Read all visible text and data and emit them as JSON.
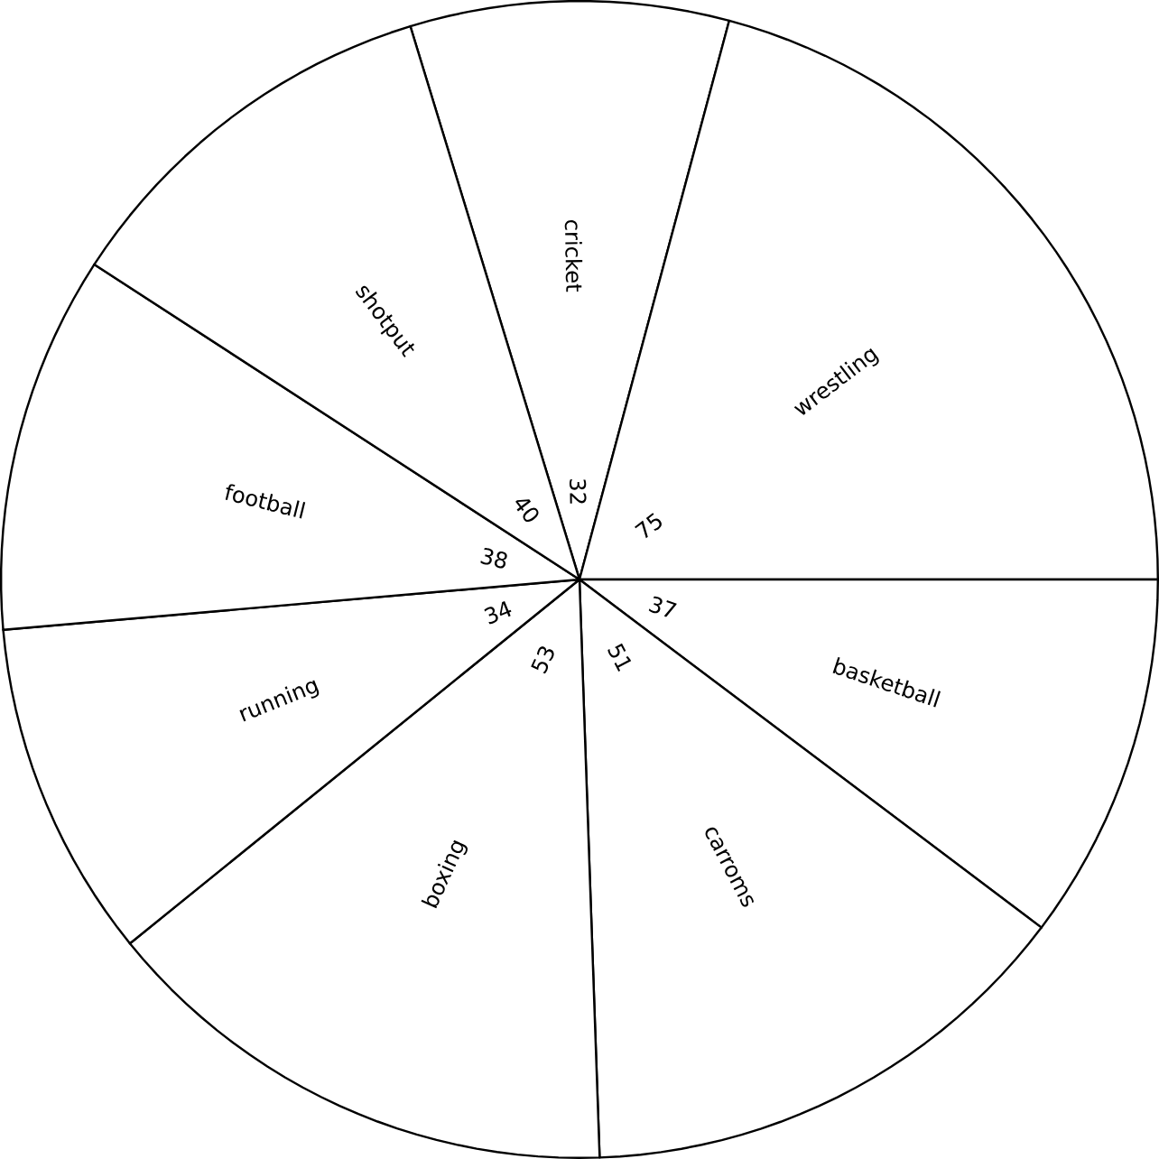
{
  "chart_data": {
    "type": "pie",
    "categories": [
      "cricket",
      "wrestling",
      "basketball",
      "carroms",
      "boxing",
      "running",
      "football",
      "shotput"
    ],
    "values": [
      32,
      75,
      37,
      51,
      53,
      34,
      38,
      40
    ],
    "colors": [
      "#ffffff",
      "#ffffff",
      "#ffffff",
      "#ffffff",
      "#ffffff",
      "#ffffff",
      "#ffffff",
      "#ffffff"
    ],
    "data_labels": true
  }
}
